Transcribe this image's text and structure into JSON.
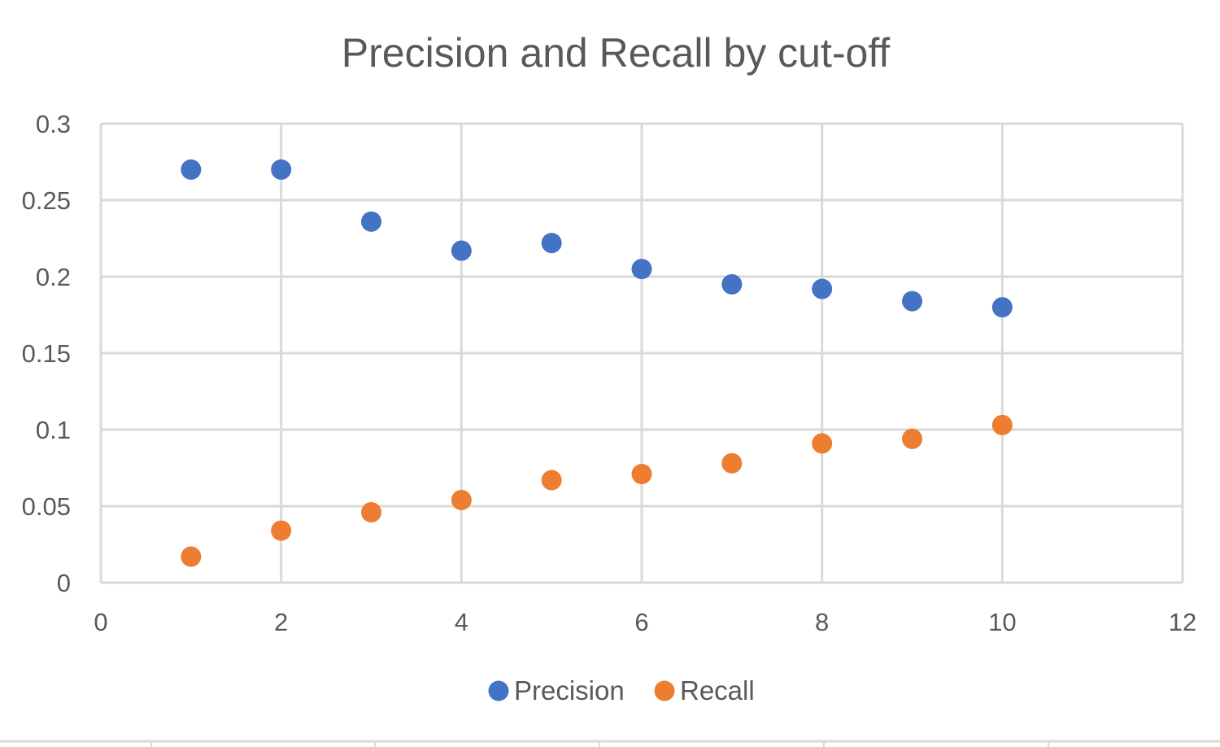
{
  "chart_data": {
    "type": "scatter",
    "title": "Precision and Recall by cut-off",
    "xlabel": "",
    "ylabel": "",
    "xlim": [
      0,
      12
    ],
    "ylim": [
      0,
      0.3
    ],
    "x_ticks": [
      "0",
      "2",
      "4",
      "6",
      "8",
      "10",
      "12"
    ],
    "y_ticks": [
      "0",
      "0.05",
      "0.1",
      "0.15",
      "0.2",
      "0.25",
      "0.3"
    ],
    "x_tick_values": [
      0,
      2,
      4,
      6,
      8,
      10,
      12
    ],
    "y_tick_values": [
      0,
      0.05,
      0.1,
      0.15,
      0.2,
      0.25,
      0.3
    ],
    "grid": true,
    "legend_position": "bottom",
    "series": [
      {
        "name": "Precision",
        "color": "#4472c4",
        "x": [
          1,
          2,
          3,
          4,
          5,
          6,
          7,
          8,
          9,
          10
        ],
        "y": [
          0.27,
          0.27,
          0.236,
          0.217,
          0.222,
          0.205,
          0.195,
          0.192,
          0.184,
          0.18
        ]
      },
      {
        "name": "Recall",
        "color": "#ed7d31",
        "x": [
          1,
          2,
          3,
          4,
          5,
          6,
          7,
          8,
          9,
          10
        ],
        "y": [
          0.017,
          0.034,
          0.046,
          0.054,
          0.067,
          0.071,
          0.078,
          0.091,
          0.094,
          0.103
        ]
      }
    ]
  }
}
